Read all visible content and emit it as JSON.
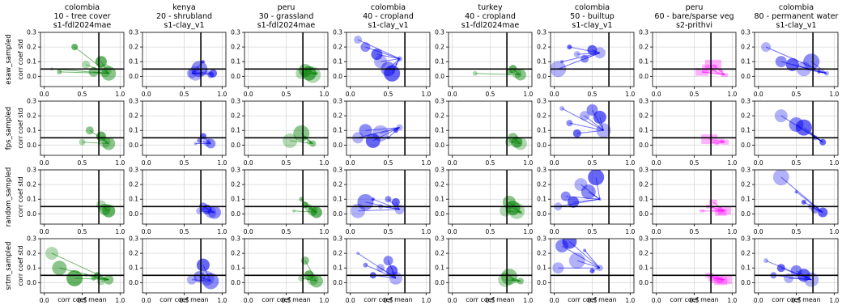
{
  "chart_data": {
    "type": "scatter",
    "description_rows": [
      "esaw_sampled",
      "fps_sampled",
      "random_sampled",
      "srtm_sampled"
    ],
    "columns": [
      {
        "title": [
          "colombia",
          "10 - tree cover",
          "s1-fdl2024mae"
        ],
        "color": "#008000"
      },
      {
        "title": [
          "kenya",
          "20 - shrubland",
          "s1-clay_v1"
        ],
        "color": "#0000ee"
      },
      {
        "title": [
          "peru",
          "30 - grassland",
          "s1-fdl2024mae"
        ],
        "color": "#008000"
      },
      {
        "title": [
          "colombia",
          "40 - cropland",
          "s1-clay_v1"
        ],
        "color": "#0000ee"
      },
      {
        "title": [
          "turkey",
          "40 - cropland",
          "s1-fdl2024mae"
        ],
        "color": "#008000"
      },
      {
        "title": [
          "colombia",
          "50 - builtup",
          "s1-clay_v1"
        ],
        "color": "#0000ee"
      },
      {
        "title": [
          "peru",
          "60 - bare/sparse veg",
          "s2-prithvi"
        ],
        "color": "#ff00ff"
      },
      {
        "title": [
          "colombia",
          "80 - permanent water",
          "s1-clay_v1"
        ],
        "color": "#0000ee"
      }
    ],
    "xlabel": "corr coef mean",
    "ylabel": "corr coef std",
    "xlim": [
      -0.05,
      1.05
    ],
    "ylim": [
      -0.07,
      0.3
    ],
    "xticks": [
      "0.0",
      "0.5",
      "1.0"
    ],
    "yticks": [
      "0.0",
      "0.1",
      "0.2",
      "0.3"
    ],
    "threshold_x": 0.72,
    "threshold_y": 0.05,
    "grid": true,
    "panels": [
      [
        {
          "x": [
            0.1,
            0.2,
            0.4,
            0.55,
            0.65,
            0.75,
            0.8,
            0.85
          ],
          "y": [
            0.05,
            0.03,
            0.2,
            0.08,
            0.03,
            0.1,
            0.04,
            0.02
          ]
        },
        {
          "x": [
            0.65,
            0.7,
            0.75,
            0.8,
            0.85,
            0.88,
            0.6
          ],
          "y": [
            0.02,
            0.05,
            0.1,
            0.03,
            0.01,
            0.02,
            0.02
          ]
        },
        {
          "x": [
            0.7,
            0.75,
            0.8,
            0.85,
            0.9
          ],
          "y": [
            0.02,
            0.04,
            0.02,
            0.01,
            0.02
          ]
        },
        {
          "x": [
            0.1,
            0.2,
            0.35,
            0.4,
            0.5,
            0.55,
            0.6,
            0.65
          ],
          "y": [
            0.25,
            0.2,
            0.15,
            0.1,
            0.05,
            0.02,
            0.08,
            0.12
          ]
        },
        {
          "x": [
            0.3,
            0.75,
            0.8,
            0.85,
            0.9
          ],
          "y": [
            0.02,
            0.03,
            0.05,
            0.02,
            0.01
          ]
        },
        {
          "x": [
            0.05,
            0.1,
            0.2,
            0.3,
            0.4,
            0.5,
            0.6
          ],
          "y": [
            0.05,
            0.1,
            0.2,
            0.15,
            0.12,
            0.18,
            0.16
          ]
        },
        {
          "x": [
            0.6,
            0.7,
            0.75,
            0.8,
            0.85,
            0.9
          ],
          "y": [
            0.03,
            0.05,
            0.08,
            0.02,
            0.04,
            0.01
          ]
        },
        {
          "x": [
            0.1,
            0.3,
            0.45,
            0.6,
            0.7,
            0.8,
            0.9
          ],
          "y": [
            0.2,
            0.1,
            0.08,
            0.05,
            0.1,
            0.03,
            0.02
          ]
        }
      ],
      [
        {
          "x": [
            0.5,
            0.6,
            0.75,
            0.8,
            0.85
          ],
          "y": [
            0.02,
            0.1,
            0.06,
            0.02,
            0.01
          ]
        },
        {
          "x": [
            0.65,
            0.7,
            0.75,
            0.8,
            0.85
          ],
          "y": [
            0.01,
            0.03,
            0.06,
            0.02,
            0.01
          ]
        },
        {
          "x": [
            0.55,
            0.7,
            0.75,
            0.8,
            0.85
          ],
          "y": [
            0.03,
            0.08,
            0.05,
            0.02,
            0.01
          ]
        },
        {
          "x": [
            0.1,
            0.2,
            0.3,
            0.4,
            0.5,
            0.6,
            0.65
          ],
          "y": [
            0.05,
            0.1,
            0.03,
            0.08,
            0.05,
            0.1,
            0.12
          ]
        },
        {
          "x": [
            0.75,
            0.8,
            0.85,
            0.9
          ],
          "y": [
            0.02,
            0.05,
            0.02,
            0.01
          ]
        },
        {
          "x": [
            0.1,
            0.2,
            0.3,
            0.4,
            0.5,
            0.6,
            0.65
          ],
          "y": [
            0.25,
            0.15,
            0.08,
            0.2,
            0.24,
            0.19,
            0.1
          ]
        },
        {
          "x": [
            0.7,
            0.75,
            0.8,
            0.85,
            0.9
          ],
          "y": [
            0.04,
            0.02,
            0.01,
            0.03,
            0.02
          ]
        },
        {
          "x": [
            0.3,
            0.5,
            0.6,
            0.7,
            0.75,
            0.85
          ],
          "y": [
            0.2,
            0.14,
            0.12,
            0.08,
            0.05,
            0.02
          ]
        }
      ],
      [
        {
          "x": [
            0.75,
            0.8,
            0.85
          ],
          "y": [
            0.06,
            0.03,
            0.02
          ]
        },
        {
          "x": [
            0.7,
            0.75,
            0.8,
            0.85,
            0.9
          ],
          "y": [
            0.02,
            0.05,
            0.03,
            0.01,
            0.01
          ]
        },
        {
          "x": [
            0.6,
            0.7,
            0.75,
            0.8,
            0.85,
            0.9
          ],
          "y": [
            0.02,
            0.1,
            0.06,
            0.04,
            0.02,
            0.01
          ]
        },
        {
          "x": [
            0.1,
            0.2,
            0.3,
            0.4,
            0.5,
            0.6,
            0.65
          ],
          "y": [
            0.02,
            0.08,
            0.1,
            0.05,
            0.1,
            0.08,
            0.03
          ]
        },
        {
          "x": [
            0.7,
            0.75,
            0.8,
            0.85,
            0.9
          ],
          "y": [
            0.02,
            0.08,
            0.04,
            0.02,
            0.01
          ]
        },
        {
          "x": [
            0.05,
            0.15,
            0.25,
            0.35,
            0.45,
            0.55,
            0.6
          ],
          "y": [
            0.05,
            0.12,
            0.08,
            0.2,
            0.15,
            0.25,
            0.1
          ]
        },
        {
          "x": [
            0.6,
            0.7,
            0.75,
            0.8,
            0.85,
            0.9
          ],
          "y": [
            0.02,
            0.05,
            0.08,
            0.03,
            0.01,
            0.02
          ]
        },
        {
          "x": [
            0.3,
            0.5,
            0.6,
            0.7,
            0.75,
            0.85
          ],
          "y": [
            0.25,
            0.15,
            0.08,
            0.05,
            0.03,
            0.01
          ]
        }
      ],
      [
        {
          "x": [
            0.1,
            0.2,
            0.4,
            0.55,
            0.65,
            0.7,
            0.75,
            0.85
          ],
          "y": [
            0.2,
            0.1,
            0.03,
            0.05,
            0.03,
            0.05,
            0.01,
            0.02
          ]
        },
        {
          "x": [
            0.6,
            0.7,
            0.75,
            0.8,
            0.85
          ],
          "y": [
            0.02,
            0.04,
            0.12,
            0.03,
            0.01
          ]
        },
        {
          "x": [
            0.7,
            0.75,
            0.8,
            0.85,
            0.9
          ],
          "y": [
            0.03,
            0.15,
            0.05,
            0.02,
            0.01
          ]
        },
        {
          "x": [
            0.1,
            0.2,
            0.3,
            0.4,
            0.5,
            0.55,
            0.6
          ],
          "y": [
            0.2,
            0.12,
            0.05,
            0.1,
            0.15,
            0.08,
            0.03
          ]
        },
        {
          "x": [
            0.7,
            0.75,
            0.8,
            0.85,
            0.9
          ],
          "y": [
            0.02,
            0.04,
            0.02,
            0.01,
            0.01
          ]
        },
        {
          "x": [
            0.05,
            0.1,
            0.2,
            0.3,
            0.4,
            0.5,
            0.6
          ],
          "y": [
            0.1,
            0.25,
            0.28,
            0.15,
            0.22,
            0.08,
            0.1
          ]
        },
        {
          "x": [
            0.7,
            0.75,
            0.8,
            0.85,
            0.9
          ],
          "y": [
            0.05,
            0.03,
            0.02,
            0.01,
            0.02
          ]
        },
        {
          "x": [
            0.1,
            0.2,
            0.3,
            0.4,
            0.5,
            0.6,
            0.7
          ],
          "y": [
            0.15,
            0.05,
            0.1,
            0.03,
            0.08,
            0.05,
            0.02
          ]
        }
      ]
    ]
  }
}
